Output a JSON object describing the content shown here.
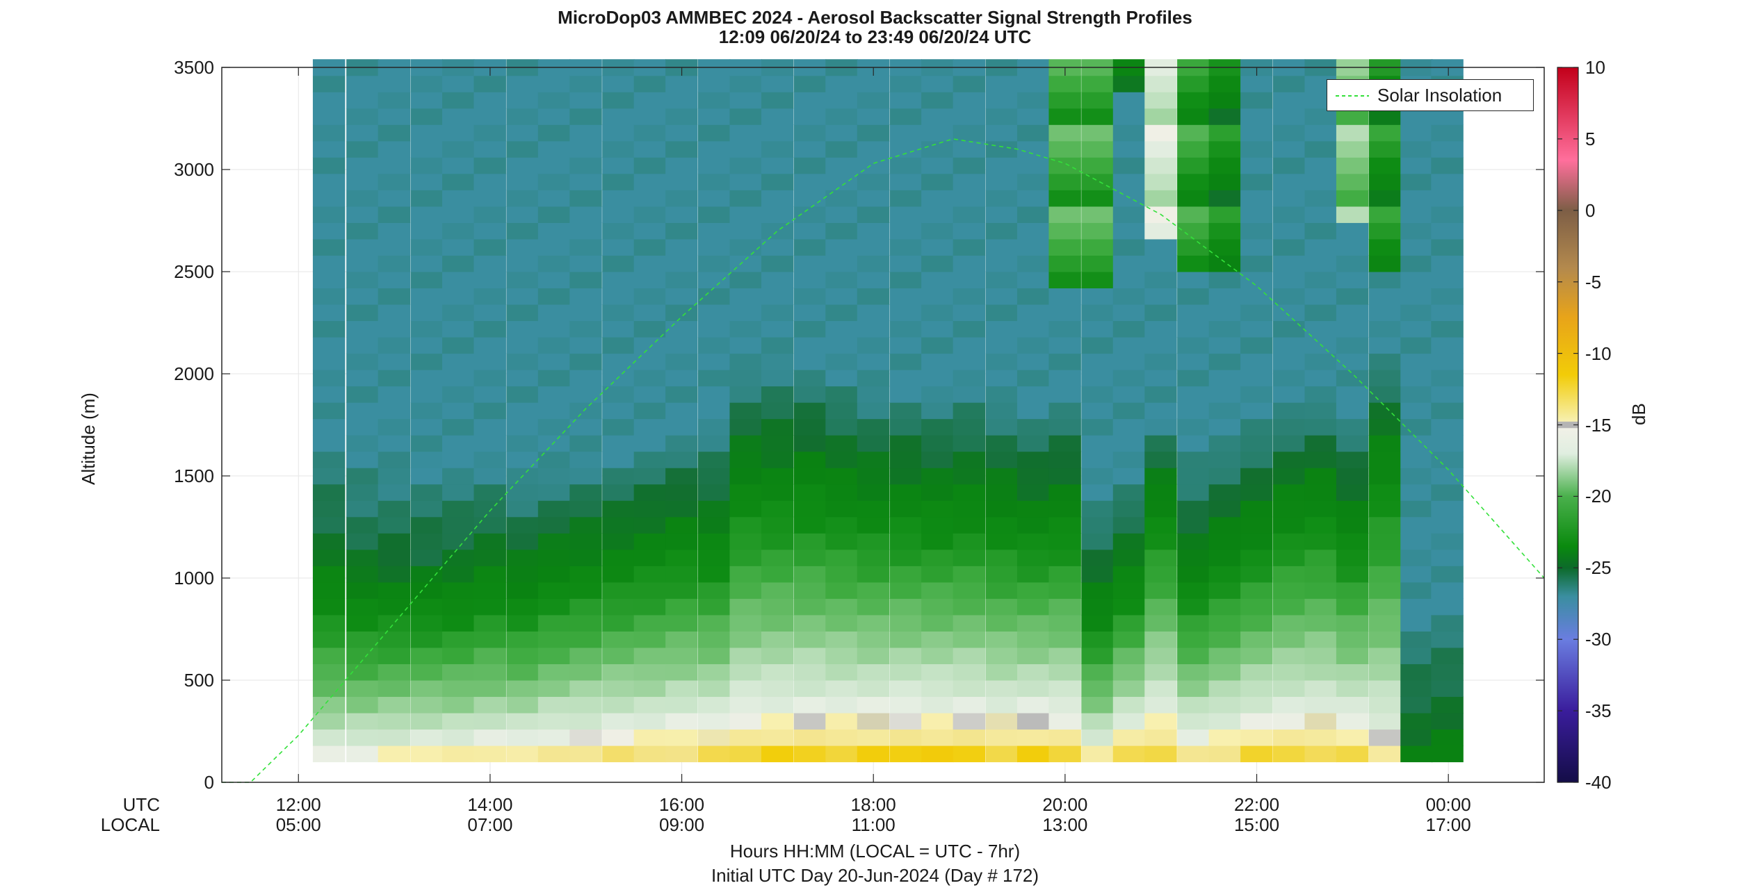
{
  "title_line1": "MicroDop03 AMMBEC 2024 - Aerosol Backscatter Signal Strength Profiles",
  "title_line2": "12:09 06/20/24 to 23:49 06/20/24  UTC",
  "ylabel": "Altitude (m)",
  "xlabel": "Hours HH:MM  (LOCAL = UTC - 7hr)",
  "footer": "Initial UTC Day 20-Jun-2024 (Day # 172)",
  "row_labels": {
    "utc": "UTC",
    "local": "LOCAL"
  },
  "colorbar_label": "dB",
  "legend_label": "Solar Insolation",
  "chart_data": {
    "type": "heatmap",
    "x_range_hours_utc": [
      11.2,
      25.0
    ],
    "y_range_m": [
      0,
      3500
    ],
    "x_ticks_utc": [
      "12:00",
      "14:00",
      "16:00",
      "18:00",
      "20:00",
      "22:00",
      "00:00"
    ],
    "x_ticks_local": [
      "05:00",
      "07:00",
      "09:00",
      "11:00",
      "13:00",
      "15:00",
      "17:00"
    ],
    "y_ticks": [
      "0",
      "500",
      "1000",
      "1500",
      "2000",
      "2500",
      "3000",
      "3500"
    ],
    "colorbar_range_db": [
      -40,
      10
    ],
    "colorbar_ticks": [
      "10",
      "5",
      "0",
      "-5",
      "-10",
      "-15",
      "-20",
      "-25",
      "-30",
      "-35",
      "-40"
    ],
    "grid": true,
    "legend_placement": "top-right",
    "data_start_hour": 12.15,
    "data_end_hour": 23.82,
    "bottom_altitude_m": 100,
    "bin_height_m": 80,
    "background_db": -28.3,
    "columns": [
      {
        "t": 12.15,
        "pbl": 1200,
        "surf": -13.5,
        "top": -26.5
      },
      {
        "t": 12.5,
        "pbl": 1150,
        "surf": -13.0,
        "top": -26.8
      },
      {
        "t": 12.83,
        "pbl": 1100,
        "surf": -12.5,
        "top": -26.5
      },
      {
        "t": 13.17,
        "pbl": 1100,
        "surf": -12.0,
        "top": -26.5
      },
      {
        "t": 13.5,
        "pbl": 1050,
        "surf": -12.0,
        "top": -26.0
      },
      {
        "t": 13.83,
        "pbl": 1050,
        "surf": -11.8,
        "top": -25.5
      },
      {
        "t": 14.17,
        "pbl": 1000,
        "surf": -11.5,
        "top": -25.5
      },
      {
        "t": 14.5,
        "pbl": 1050,
        "surf": -11.0,
        "top": -25.3
      },
      {
        "t": 14.83,
        "pbl": 1100,
        "surf": -10.8,
        "top": -25.3
      },
      {
        "t": 15.17,
        "pbl": 1100,
        "surf": -10.5,
        "top": -25.0
      },
      {
        "t": 15.5,
        "pbl": 1150,
        "surf": -10.5,
        "top": -25.0
      },
      {
        "t": 15.83,
        "pbl": 1200,
        "surf": -10.2,
        "top": -25.0
      },
      {
        "t": 16.17,
        "pbl": 1250,
        "surf": -10.0,
        "top": -25.5
      },
      {
        "t": 16.5,
        "pbl": 1550,
        "surf": -9.8,
        "top": -25.5
      },
      {
        "t": 16.83,
        "pbl": 1600,
        "surf": -9.6,
        "top": -25.8
      },
      {
        "t": 17.17,
        "pbl": 1550,
        "surf": -9.5,
        "top": -25.5
      },
      {
        "t": 17.5,
        "pbl": 1500,
        "surf": -9.4,
        "top": -25.5
      },
      {
        "t": 17.83,
        "pbl": 1450,
        "surf": -9.2,
        "top": -25.5
      },
      {
        "t": 18.17,
        "pbl": 1450,
        "surf": -9.0,
        "top": -25.5
      },
      {
        "t": 18.5,
        "pbl": 1400,
        "surf": -9.0,
        "top": -25.3
      },
      {
        "t": 18.83,
        "pbl": 1450,
        "surf": -9.2,
        "top": -25.5
      },
      {
        "t": 19.17,
        "pbl": 1400,
        "surf": -9.5,
        "top": -25.5
      },
      {
        "t": 19.5,
        "pbl": 1350,
        "surf": -9.0,
        "top": -25.5
      },
      {
        "t": 19.83,
        "pbl": 1400,
        "surf": -9.5,
        "top": -25.5
      },
      {
        "t": 20.17,
        "pbl": 900,
        "surf": -12.0,
        "top": -25.5
      },
      {
        "t": 20.5,
        "pbl": 1000,
        "surf": -9.5,
        "top": -25.0
      },
      {
        "t": 20.83,
        "pbl": 1300,
        "surf": -9.5,
        "top": -24.5
      },
      {
        "t": 21.17,
        "pbl": 1150,
        "surf": -11.0,
        "top": -26.0
      },
      {
        "t": 21.5,
        "pbl": 1200,
        "surf": -10.5,
        "top": -25.5
      },
      {
        "t": 21.83,
        "pbl": 1300,
        "surf": -9.8,
        "top": -25.5
      },
      {
        "t": 22.17,
        "pbl": 1350,
        "surf": -9.8,
        "top": -25.0
      },
      {
        "t": 22.5,
        "pbl": 1400,
        "surf": -9.8,
        "top": -25.0
      },
      {
        "t": 22.83,
        "pbl": 1300,
        "surf": -10.0,
        "top": -25.3
      },
      {
        "t": 23.17,
        "pbl": 1600,
        "surf": -12.0,
        "top": -25.0
      },
      {
        "t": 23.5,
        "pbl": 350,
        "surf": -25.5,
        "top": -26.5
      },
      {
        "t": 23.82,
        "pbl": 400,
        "surf": -25.0,
        "top": -26.5
      }
    ],
    "clouds": [
      {
        "t": 20.0,
        "bottom": 2450,
        "top": 3500,
        "db": -22
      },
      {
        "t": 20.5,
        "bottom": 3400,
        "top": 3500,
        "db": -26
      },
      {
        "t": 20.83,
        "bottom": 2650,
        "top": 3500,
        "db": -17
      },
      {
        "t": 21.17,
        "bottom": 2500,
        "top": 3500,
        "db": -23
      },
      {
        "t": 21.5,
        "bottom": 2500,
        "top": 3500,
        "db": -24.5
      },
      {
        "t": 22.83,
        "bottom": 2750,
        "top": 3500,
        "db": -20
      },
      {
        "t": 23.17,
        "bottom": 2500,
        "top": 3500,
        "db": -24
      }
    ],
    "solar_insolation": {
      "name": "Solar Insolation",
      "sunrise_hour": 11.5,
      "peak_hour": 18.83,
      "peak_altitude_units": 3150,
      "x": [
        11.2,
        11.5,
        12.0,
        13.0,
        14.0,
        15.0,
        16.0,
        17.0,
        18.0,
        18.83,
        19.5,
        20.0,
        21.0,
        22.0,
        23.0,
        24.0,
        25.0
      ],
      "y": [
        0,
        0,
        230,
        780,
        1330,
        1830,
        2280,
        2700,
        3030,
        3150,
        3100,
        3030,
        2780,
        2430,
        2000,
        1530,
        1000
      ]
    }
  }
}
